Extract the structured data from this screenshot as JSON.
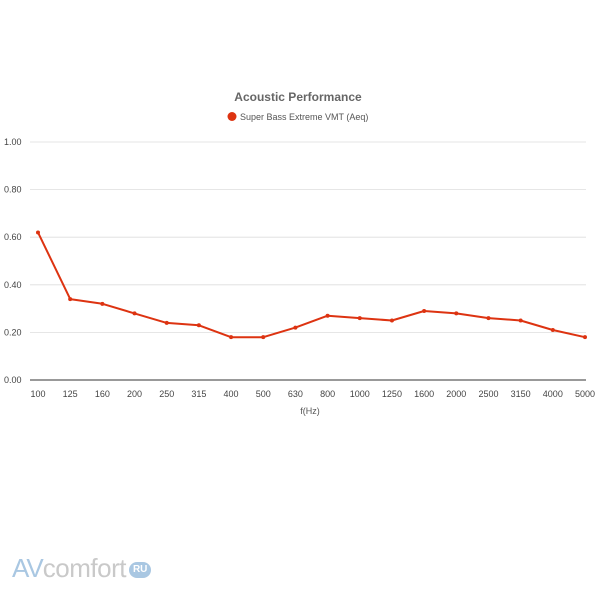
{
  "chart_data": {
    "type": "line",
    "title": "Acoustic Performance",
    "xlabel": "f(Hz)",
    "ylabel": "",
    "categories": [
      "100",
      "125",
      "160",
      "200",
      "250",
      "315",
      "400",
      "500",
      "630",
      "800",
      "1000",
      "1250",
      "1600",
      "2000",
      "2500",
      "3150",
      "4000",
      "5000"
    ],
    "series": [
      {
        "name": "Super Bass Extreme VMT (Aeq)",
        "color": "#dd3311",
        "values": [
          0.62,
          0.34,
          0.32,
          0.28,
          0.24,
          0.23,
          0.18,
          0.18,
          0.22,
          0.27,
          0.26,
          0.25,
          0.29,
          0.28,
          0.26,
          0.25,
          0.21,
          0.18
        ]
      }
    ],
    "ylim": [
      0,
      1.0
    ],
    "yticks": [
      "0.00",
      "0.20",
      "0.40",
      "0.60",
      "0.80",
      "1.00"
    ],
    "grid": true,
    "legend_position": "top-center"
  },
  "watermark": {
    "part1": "AV",
    "part2": "comfort",
    "badge": "RU"
  }
}
